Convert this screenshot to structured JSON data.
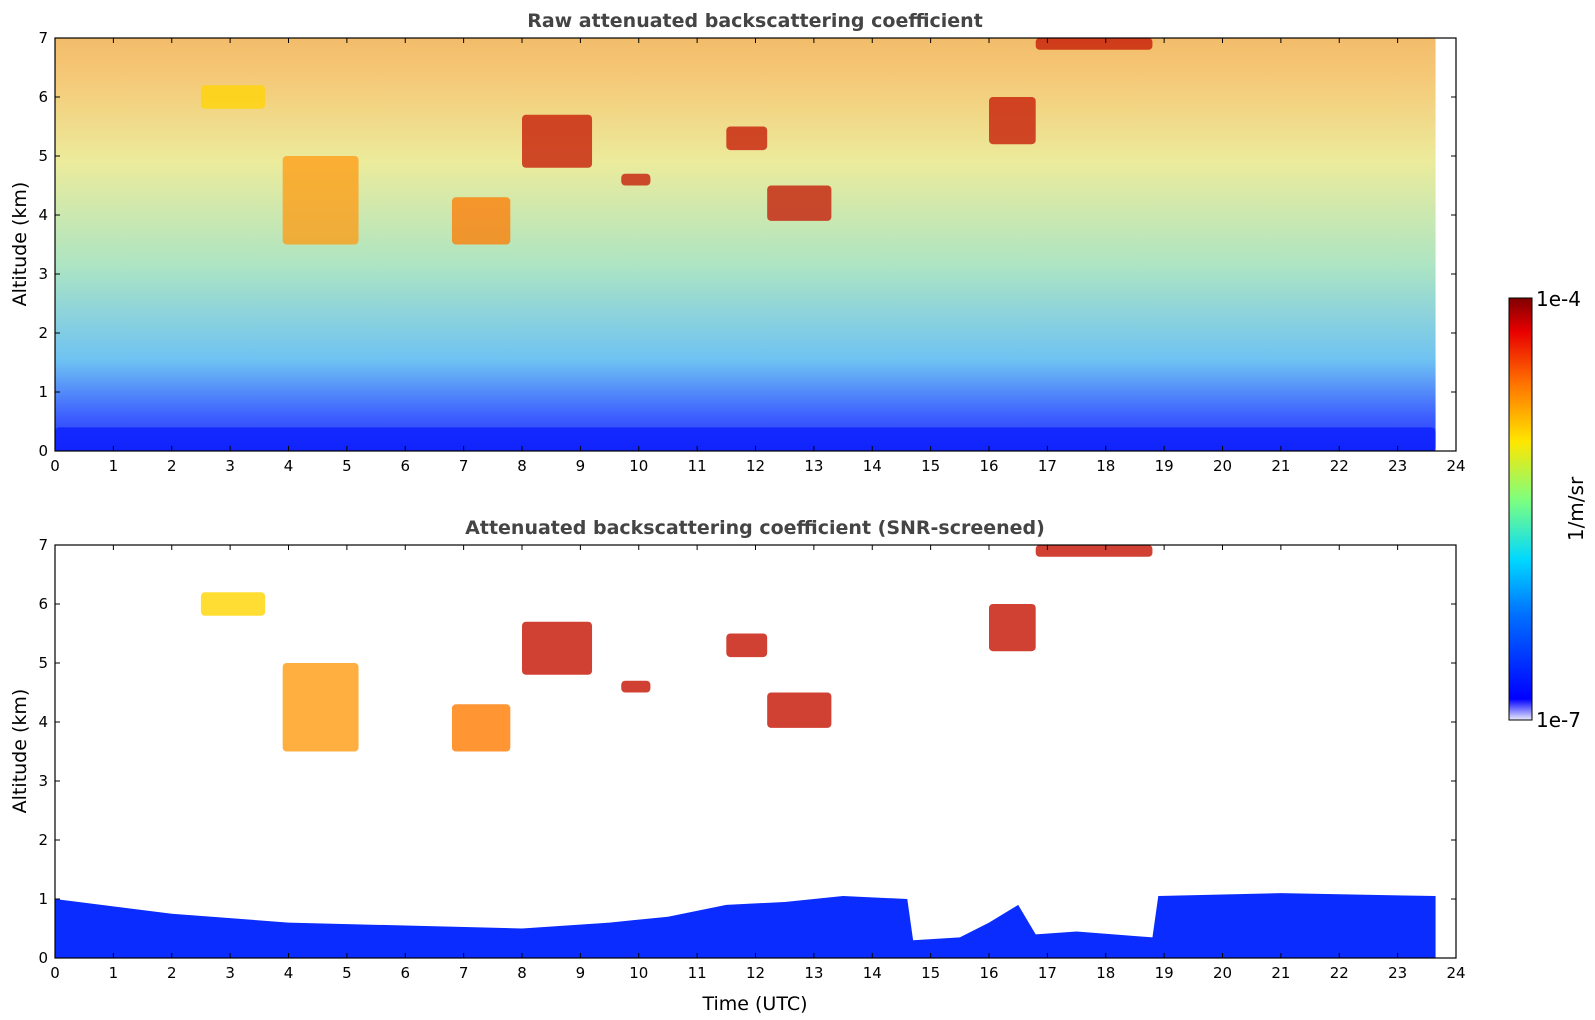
{
  "chart_data": [
    {
      "type": "heatmap",
      "title": "Raw attenuated backscattering coefficient",
      "xlabel": "",
      "ylabel": "Altitude (km)",
      "xlim": [
        0,
        24
      ],
      "ylim": [
        0,
        7
      ],
      "x_ticks": [
        0,
        1,
        2,
        3,
        4,
        5,
        6,
        7,
        8,
        9,
        10,
        11,
        12,
        13,
        14,
        15,
        16,
        17,
        18,
        19,
        20,
        21,
        22,
        23,
        24
      ],
      "y_ticks": [
        0,
        1,
        2,
        3,
        4,
        5,
        6,
        7
      ],
      "data_extent_hours": [
        0,
        23.65
      ],
      "features": [
        {
          "label": "aerosol layer",
          "time": [
            0,
            23.65
          ],
          "alt": [
            0,
            0.4
          ],
          "level": "blue"
        },
        {
          "label": "cloud band",
          "time": [
            2.5,
            3.6
          ],
          "alt": [
            5.8,
            6.2
          ],
          "level": "yellow"
        },
        {
          "label": "descending layer",
          "time": [
            3.9,
            5.2
          ],
          "alt": [
            3.5,
            5.0
          ],
          "level": "green-orange"
        },
        {
          "label": "cloud",
          "time": [
            6.8,
            7.8
          ],
          "alt": [
            3.5,
            4.3
          ],
          "level": "orange"
        },
        {
          "label": "cloud",
          "time": [
            8.0,
            9.2
          ],
          "alt": [
            4.8,
            5.7
          ],
          "level": "red"
        },
        {
          "label": "cloud",
          "time": [
            9.7,
            10.2
          ],
          "alt": [
            4.5,
            4.7
          ],
          "level": "red"
        },
        {
          "label": "cloud",
          "time": [
            11.5,
            12.2
          ],
          "alt": [
            5.1,
            5.5
          ],
          "level": "red"
        },
        {
          "label": "cloud",
          "time": [
            12.2,
            13.3
          ],
          "alt": [
            3.9,
            4.5
          ],
          "level": "red"
        },
        {
          "label": "cloud",
          "time": [
            16.0,
            16.8
          ],
          "alt": [
            5.2,
            6.0
          ],
          "level": "red"
        },
        {
          "label": "cloud",
          "time": [
            16.8,
            18.8
          ],
          "alt": [
            6.8,
            7.0
          ],
          "level": "red"
        }
      ]
    },
    {
      "type": "heatmap",
      "title": "Attenuated backscattering coefficient (SNR-screened)",
      "xlabel": "Time (UTC)",
      "ylabel": "Altitude (km)",
      "xlim": [
        0,
        24
      ],
      "ylim": [
        0,
        7
      ],
      "x_ticks": [
        0,
        1,
        2,
        3,
        4,
        5,
        6,
        7,
        8,
        9,
        10,
        11,
        12,
        13,
        14,
        15,
        16,
        17,
        18,
        19,
        20,
        21,
        22,
        23,
        24
      ],
      "y_ticks": [
        0,
        1,
        2,
        3,
        4,
        5,
        6,
        7
      ],
      "boundary_layer_top_km": [
        [
          0,
          1.0
        ],
        [
          2,
          0.75
        ],
        [
          4,
          0.6
        ],
        [
          6,
          0.55
        ],
        [
          8,
          0.5
        ],
        [
          9.5,
          0.6
        ],
        [
          10.5,
          0.7
        ],
        [
          11.5,
          0.9
        ],
        [
          12.5,
          0.95
        ],
        [
          13.5,
          1.05
        ],
        [
          14.6,
          1.0
        ],
        [
          14.7,
          0.3
        ],
        [
          15.5,
          0.35
        ],
        [
          16.0,
          0.6
        ],
        [
          16.5,
          0.9
        ],
        [
          16.8,
          0.4
        ],
        [
          17.5,
          0.45
        ],
        [
          18.8,
          0.35
        ],
        [
          18.9,
          1.05
        ],
        [
          21,
          1.1
        ],
        [
          23.65,
          1.05
        ]
      ],
      "colorbar": {
        "label": "1/m/sr",
        "max_label": "1e-4",
        "min_label": "1e-7",
        "scale": "log"
      }
    }
  ]
}
